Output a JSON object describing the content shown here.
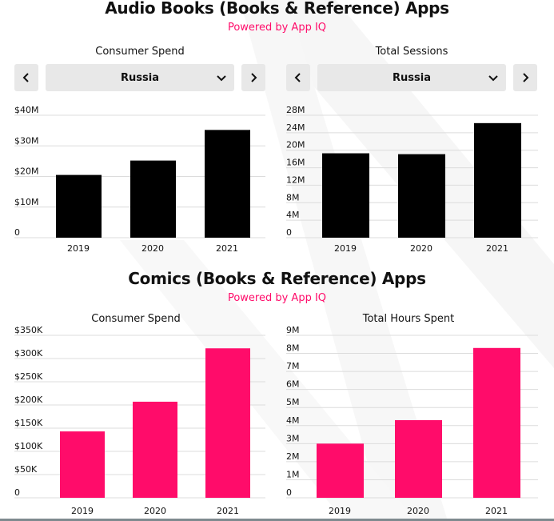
{
  "sections": [
    {
      "title": "Audio Books (Books & Reference) Apps",
      "powered": "Powered by App IQ"
    },
    {
      "title": "Comics (Books & Reference) Apps",
      "powered": "Powered by App IQ"
    }
  ],
  "selectors": {
    "left_country": "Russia",
    "right_country": "Russia"
  },
  "colors": {
    "audio_bars": "#000000",
    "comics_bars": "#ff0c6a",
    "accent": "#ff0c6a"
  },
  "chart_data": [
    {
      "type": "bar",
      "title": "Consumer Spend",
      "categories": [
        "2019",
        "2020",
        "2021"
      ],
      "values": [
        20.5,
        25.2,
        35.2
      ],
      "yticks": [
        "$40M",
        "$30M",
        "$20M",
        "$10M",
        "0"
      ],
      "ylim": [
        0,
        40
      ],
      "grid": true
    },
    {
      "type": "bar",
      "title": "Total Sessions",
      "categories": [
        "2019",
        "2020",
        "2021"
      ],
      "values": [
        19.3,
        19.1,
        26.2
      ],
      "yticks": [
        "28M",
        "24M",
        "20M",
        "16M",
        "12M",
        "8M",
        "4M",
        "0"
      ],
      "ylim": [
        0,
        28
      ],
      "grid": true
    },
    {
      "type": "bar",
      "title": "Consumer Spend",
      "categories": [
        "2019",
        "2020",
        "2021"
      ],
      "values": [
        143000,
        207000,
        322000
      ],
      "yticks": [
        "$350K",
        "$300K",
        "$250K",
        "$200K",
        "$150K",
        "$100K",
        "$50K",
        "0"
      ],
      "ylim": [
        0,
        350000
      ],
      "grid": true
    },
    {
      "type": "bar",
      "title": "Total Hours Spent",
      "categories": [
        "2019",
        "2020",
        "2021"
      ],
      "values": [
        3.0,
        4.3,
        8.3
      ],
      "yticks": [
        "9M",
        "8M",
        "7M",
        "6M",
        "5M",
        "4M",
        "3M",
        "2M",
        "1M",
        "0"
      ],
      "ylim": [
        0,
        9
      ],
      "grid": true
    }
  ]
}
